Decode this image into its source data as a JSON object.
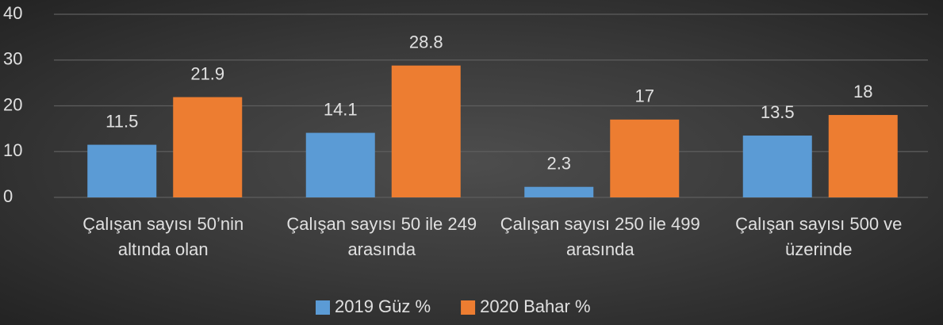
{
  "chart_data": {
    "type": "bar",
    "categories": [
      "Çalışan sayısı 50’nin altında olan",
      "Çalışan sayısı 50 ile 249 arasında",
      "Çalışan sayısı 250 ile 499 arasında",
      "Çalışan sayısı 500 ve üzerinde"
    ],
    "series": [
      {
        "name": "2019 Güz %",
        "color": "#5b9bd5",
        "values": [
          11.5,
          14.1,
          2.3,
          13.5
        ]
      },
      {
        "name": "2020 Bahar %",
        "color": "#ed7d31",
        "values": [
          21.9,
          28.8,
          17,
          18
        ]
      }
    ],
    "ylim": [
      0,
      40
    ],
    "yticks": [
      0,
      10,
      20,
      30,
      40
    ],
    "grid": true,
    "legend": "bottom"
  }
}
